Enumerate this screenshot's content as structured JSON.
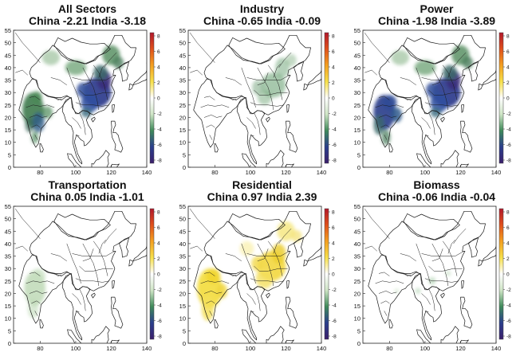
{
  "figure": {
    "colorbar": {
      "ticks": [
        "8",
        "6",
        "4",
        "2",
        "0",
        "-2",
        "-4",
        "-6",
        "-8"
      ],
      "colors": [
        "#b2182b",
        "#e0501b",
        "#f4a020",
        "#f7e04a",
        "#ffffff",
        "#cfe5c6",
        "#3f8a5a",
        "#2a3e8c",
        "#3b1f6b"
      ]
    },
    "panels": [
      {
        "title": "All Sectors",
        "subtitle": "China -2.21 India -3.18",
        "xticks": [
          "80",
          "100",
          "120",
          "140"
        ],
        "yticks": [
          "55",
          "50",
          "45",
          "40",
          "35",
          "30",
          "25",
          "20",
          "15",
          "10",
          "5",
          "0"
        ],
        "fields": [
          "india-green",
          "china-blue"
        ]
      },
      {
        "title": "Industry",
        "subtitle": "China -0.65 India -0.09",
        "xticks": [
          "80",
          "100",
          "120",
          "140"
        ],
        "yticks": [
          "55",
          "50",
          "45",
          "40",
          "35",
          "30",
          "25",
          "20",
          "15",
          "10",
          "5",
          "0"
        ],
        "fields": [
          "china-light-green"
        ]
      },
      {
        "title": "Power",
        "subtitle": "China -1.98 India -3.89",
        "xticks": [
          "80",
          "100",
          "120",
          "140"
        ],
        "yticks": [
          "55",
          "50",
          "45",
          "40",
          "35",
          "30",
          "25",
          "20",
          "15",
          "10",
          "5",
          "0"
        ],
        "fields": [
          "india-blue",
          "china-blue"
        ]
      },
      {
        "title": "Transportation",
        "subtitle": "China 0.05 India -1.01",
        "xticks": [
          "80",
          "100",
          "120",
          "140"
        ],
        "yticks": [
          "55",
          "50",
          "45",
          "40",
          "35",
          "30",
          "25",
          "20",
          "15",
          "10",
          "5",
          "0"
        ],
        "fields": [
          "india-pale-green"
        ]
      },
      {
        "title": "Residential",
        "subtitle": "China 0.97 India 2.39",
        "xticks": [
          "80",
          "100",
          "120",
          "140"
        ],
        "yticks": [
          "55",
          "50",
          "45",
          "40",
          "35",
          "30",
          "25",
          "20",
          "15",
          "10",
          "5",
          "0"
        ],
        "fields": [
          "india-yellow",
          "china-yellow"
        ]
      },
      {
        "title": "Biomass",
        "subtitle": "China -0.06 India -0.04",
        "xticks": [
          "80",
          "100",
          "120",
          "140"
        ],
        "yticks": [
          "55",
          "50",
          "45",
          "40",
          "35",
          "30",
          "25",
          "20",
          "15",
          "10",
          "5",
          "0"
        ],
        "fields": [
          "sparse"
        ]
      }
    ]
  }
}
